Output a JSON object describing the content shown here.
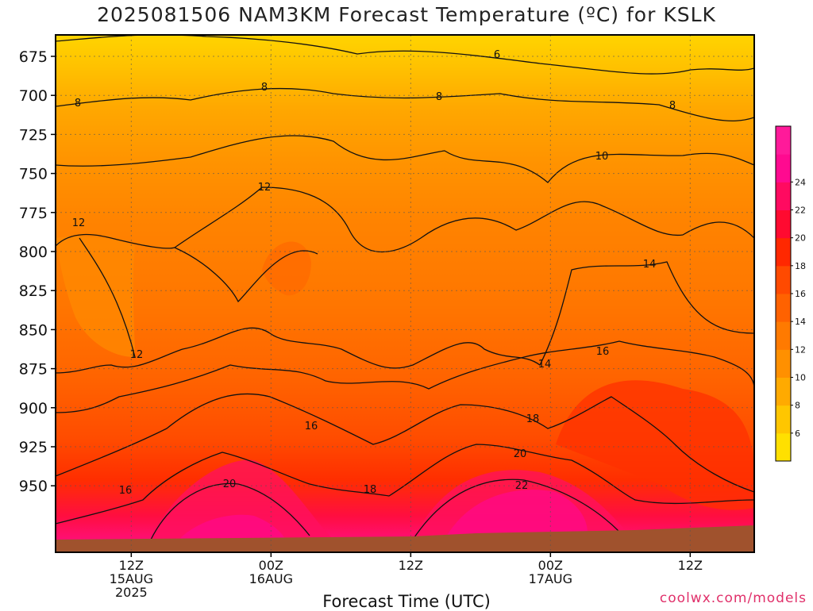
{
  "chart_data": {
    "type": "heatmap",
    "title": "2025081506 NAM3KM Forecast Temperature (ºC) for KSLK",
    "xlabel": "Forecast Time (UTC)",
    "ylabel": "",
    "y_ticks": [
      "675",
      "700",
      "725",
      "750",
      "775",
      "800",
      "825",
      "850",
      "875",
      "900",
      "925",
      "950"
    ],
    "x_ticks": [
      {
        "h": 6,
        "lines": [
          "12Z",
          "15AUG",
          "2025"
        ]
      },
      {
        "h": 18,
        "lines": [
          "00Z",
          "16AUG"
        ]
      },
      {
        "h": 30,
        "lines": [
          "12Z"
        ]
      },
      {
        "h": 42,
        "lines": [
          "00Z",
          "17AUG"
        ]
      },
      {
        "h": 54,
        "lines": [
          "12Z"
        ]
      }
    ],
    "colorbar": {
      "labels": [
        "6",
        "8",
        "10",
        "12",
        "14",
        "16",
        "18",
        "20",
        "22",
        "24"
      ],
      "colors": [
        "#ffe000",
        "#ffc600",
        "#ffaa00",
        "#ff9000",
        "#ff7a00",
        "#ff6200",
        "#ff4a00",
        "#ff2800",
        "#ff0a30",
        "#ff0a60",
        "#ff0a90",
        "#ff1a9a"
      ]
    },
    "contour_labels": [
      "6",
      "8",
      "8",
      "8",
      "8",
      "10",
      "12",
      "12",
      "12",
      "14",
      "14",
      "16",
      "16",
      "16",
      "18",
      "18",
      "20",
      "20",
      "22"
    ],
    "credit": "coolwx.com/models"
  }
}
